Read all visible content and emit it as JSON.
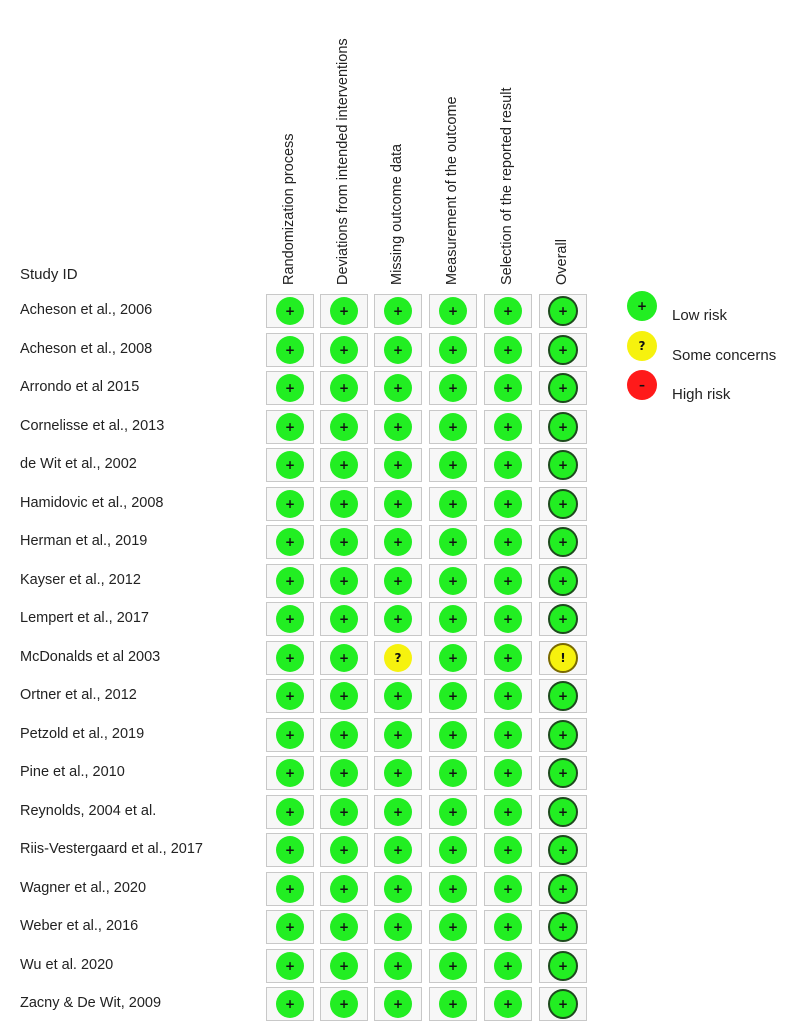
{
  "study_header": "Study ID",
  "domains": [
    "Randomization process",
    "Deviations from intended interventions",
    "Missing outcome data",
    "Measurement of the outcome",
    "Selection of the reported result",
    "Overall"
  ],
  "legend": [
    {
      "key": "low",
      "symbol": "+",
      "label": "Low risk",
      "color": "#22ee22"
    },
    {
      "key": "some",
      "symbol": "?",
      "label": "Some concerns",
      "color": "#f6f20e"
    },
    {
      "key": "high",
      "symbol": "–",
      "label": "High risk",
      "color": "#ff1a1a"
    }
  ],
  "studies": [
    {
      "id": "Acheson et al., 2006",
      "ratings": [
        "+",
        "+",
        "+",
        "+",
        "+",
        "+"
      ]
    },
    {
      "id": "Acheson et al., 2008",
      "ratings": [
        "+",
        "+",
        "+",
        "+",
        "+",
        "+"
      ]
    },
    {
      "id": "Arrondo et al 2015",
      "ratings": [
        "+",
        "+",
        "+",
        "+",
        "+",
        "+"
      ]
    },
    {
      "id": "Cornelisse et al., 2013",
      "ratings": [
        "+",
        "+",
        "+",
        "+",
        "+",
        "+"
      ]
    },
    {
      "id": "de Wit et al., 2002",
      "ratings": [
        "+",
        "+",
        "+",
        "+",
        "+",
        "+"
      ]
    },
    {
      "id": "Hamidovic et al., 2008",
      "ratings": [
        "+",
        "+",
        "+",
        "+",
        "+",
        "+"
      ]
    },
    {
      "id": "Herman et al., 2019",
      "ratings": [
        "+",
        "+",
        "+",
        "+",
        "+",
        "+"
      ]
    },
    {
      "id": "Kayser et al., 2012",
      "ratings": [
        "+",
        "+",
        "+",
        "+",
        "+",
        "+"
      ]
    },
    {
      "id": "Lempert et al., 2017",
      "ratings": [
        "+",
        "+",
        "+",
        "+",
        "+",
        "+"
      ]
    },
    {
      "id": "McDonalds et al 2003",
      "ratings": [
        "+",
        "+",
        "?",
        "+",
        "+",
        "!"
      ]
    },
    {
      "id": "Ortner et al., 2012",
      "ratings": [
        "+",
        "+",
        "+",
        "+",
        "+",
        "+"
      ]
    },
    {
      "id": "Petzold et al., 2019",
      "ratings": [
        "+",
        "+",
        "+",
        "+",
        "+",
        "+"
      ]
    },
    {
      "id": "Pine et al., 2010",
      "ratings": [
        "+",
        "+",
        "+",
        "+",
        "+",
        "+"
      ]
    },
    {
      "id": "Reynolds, 2004 et al.",
      "ratings": [
        "+",
        "+",
        "+",
        "+",
        "+",
        "+"
      ]
    },
    {
      "id": "Riis-Vestergaard et al., 2017",
      "ratings": [
        "+",
        "+",
        "+",
        "+",
        "+",
        "+"
      ]
    },
    {
      "id": "Wagner et al., 2020",
      "ratings": [
        "+",
        "+",
        "+",
        "+",
        "+",
        "+"
      ]
    },
    {
      "id": "Weber et al., 2016",
      "ratings": [
        "+",
        "+",
        "+",
        "+",
        "+",
        "+"
      ]
    },
    {
      "id": "Wu et al. 2020",
      "ratings": [
        "+",
        "+",
        "+",
        "+",
        "+",
        "+"
      ]
    },
    {
      "id": "Zacny & De Wit, 2009",
      "ratings": [
        "+",
        "+",
        "+",
        "+",
        "+",
        "+"
      ]
    }
  ]
}
